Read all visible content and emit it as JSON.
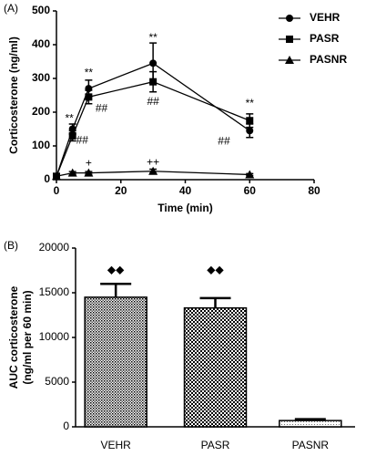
{
  "chart_data": [
    {
      "type": "line",
      "label": "(A)",
      "x_label": "Time (min)",
      "y_label": "Corticosterone (ng/ml)",
      "x": [
        0,
        5,
        10,
        30,
        60
      ],
      "series": [
        {
          "name": "VEHR",
          "color": "#000000",
          "marker": "circle",
          "values": [
            10,
            150,
            270,
            345,
            145
          ],
          "errors": [
            5,
            15,
            25,
            60,
            20
          ]
        },
        {
          "name": "PASR",
          "color": "#000000",
          "marker": "square",
          "values": [
            10,
            130,
            245,
            290,
            175
          ],
          "errors": [
            5,
            15,
            20,
            30,
            20
          ]
        },
        {
          "name": "PASNR",
          "color": "#000000",
          "marker": "triangle",
          "values": [
            10,
            20,
            20,
            25,
            15
          ],
          "errors": [
            3,
            4,
            4,
            6,
            3
          ]
        }
      ],
      "xlim": [
        0,
        80
      ],
      "xticks": [
        0,
        20,
        40,
        60,
        80
      ],
      "ylim": [
        0,
        500
      ],
      "yticks": [
        0,
        100,
        200,
        300,
        400,
        500
      ],
      "legend": "upper right",
      "annotations": [
        {
          "text": "**",
          "x": 4,
          "y": 180
        },
        {
          "text": "**",
          "x": 10,
          "y": 315
        },
        {
          "text": "**",
          "x": 30,
          "y": 420
        },
        {
          "text": "**",
          "x": 60,
          "y": 225
        },
        {
          "text": "##",
          "x": 8,
          "y": 115
        },
        {
          "text": "##",
          "x": 14,
          "y": 210
        },
        {
          "text": "##",
          "x": 30,
          "y": 230
        },
        {
          "text": "##",
          "x": 52,
          "y": 112
        },
        {
          "text": "+",
          "x": 10,
          "y": 48
        },
        {
          "text": "++",
          "x": 30,
          "y": 50
        }
      ]
    },
    {
      "type": "bar",
      "label": "(B)",
      "y_label": [
        "AUC corticosterone",
        "(ng/ml per 60 min)"
      ],
      "categories": [
        "VEHR",
        "PASR",
        "PASNR"
      ],
      "values": [
        14500,
        13300,
        700
      ],
      "errors": [
        1500,
        1100,
        150
      ],
      "color": "#000000",
      "ylim": [
        0,
        20000
      ],
      "yticks": [
        0,
        5000,
        10000,
        15000,
        20000
      ],
      "annotations": [
        {
          "text": "◆◆",
          "category": "VEHR",
          "y": 17500
        },
        {
          "text": "◆◆",
          "category": "PASR",
          "y": 17500
        }
      ]
    }
  ]
}
